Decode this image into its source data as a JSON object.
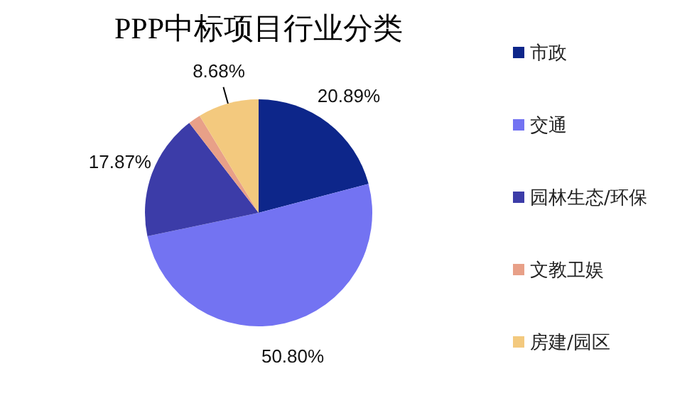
{
  "chart_data": {
    "type": "pie",
    "title": "PPP中标项目行业分类",
    "categories": [
      "市政",
      "交通",
      "园林生态/环保",
      "文教卫娱",
      "房建/园区"
    ],
    "values": [
      20.89,
      50.8,
      17.87,
      1.76,
      8.68
    ],
    "value_labels": [
      "20.89%",
      "50.80%",
      "17.87%",
      null,
      "8.68%"
    ],
    "colors": [
      "#0d268a",
      "#7373f2",
      "#3c3ca8",
      "#e8a088",
      "#f3c97e"
    ],
    "legend": "right"
  }
}
